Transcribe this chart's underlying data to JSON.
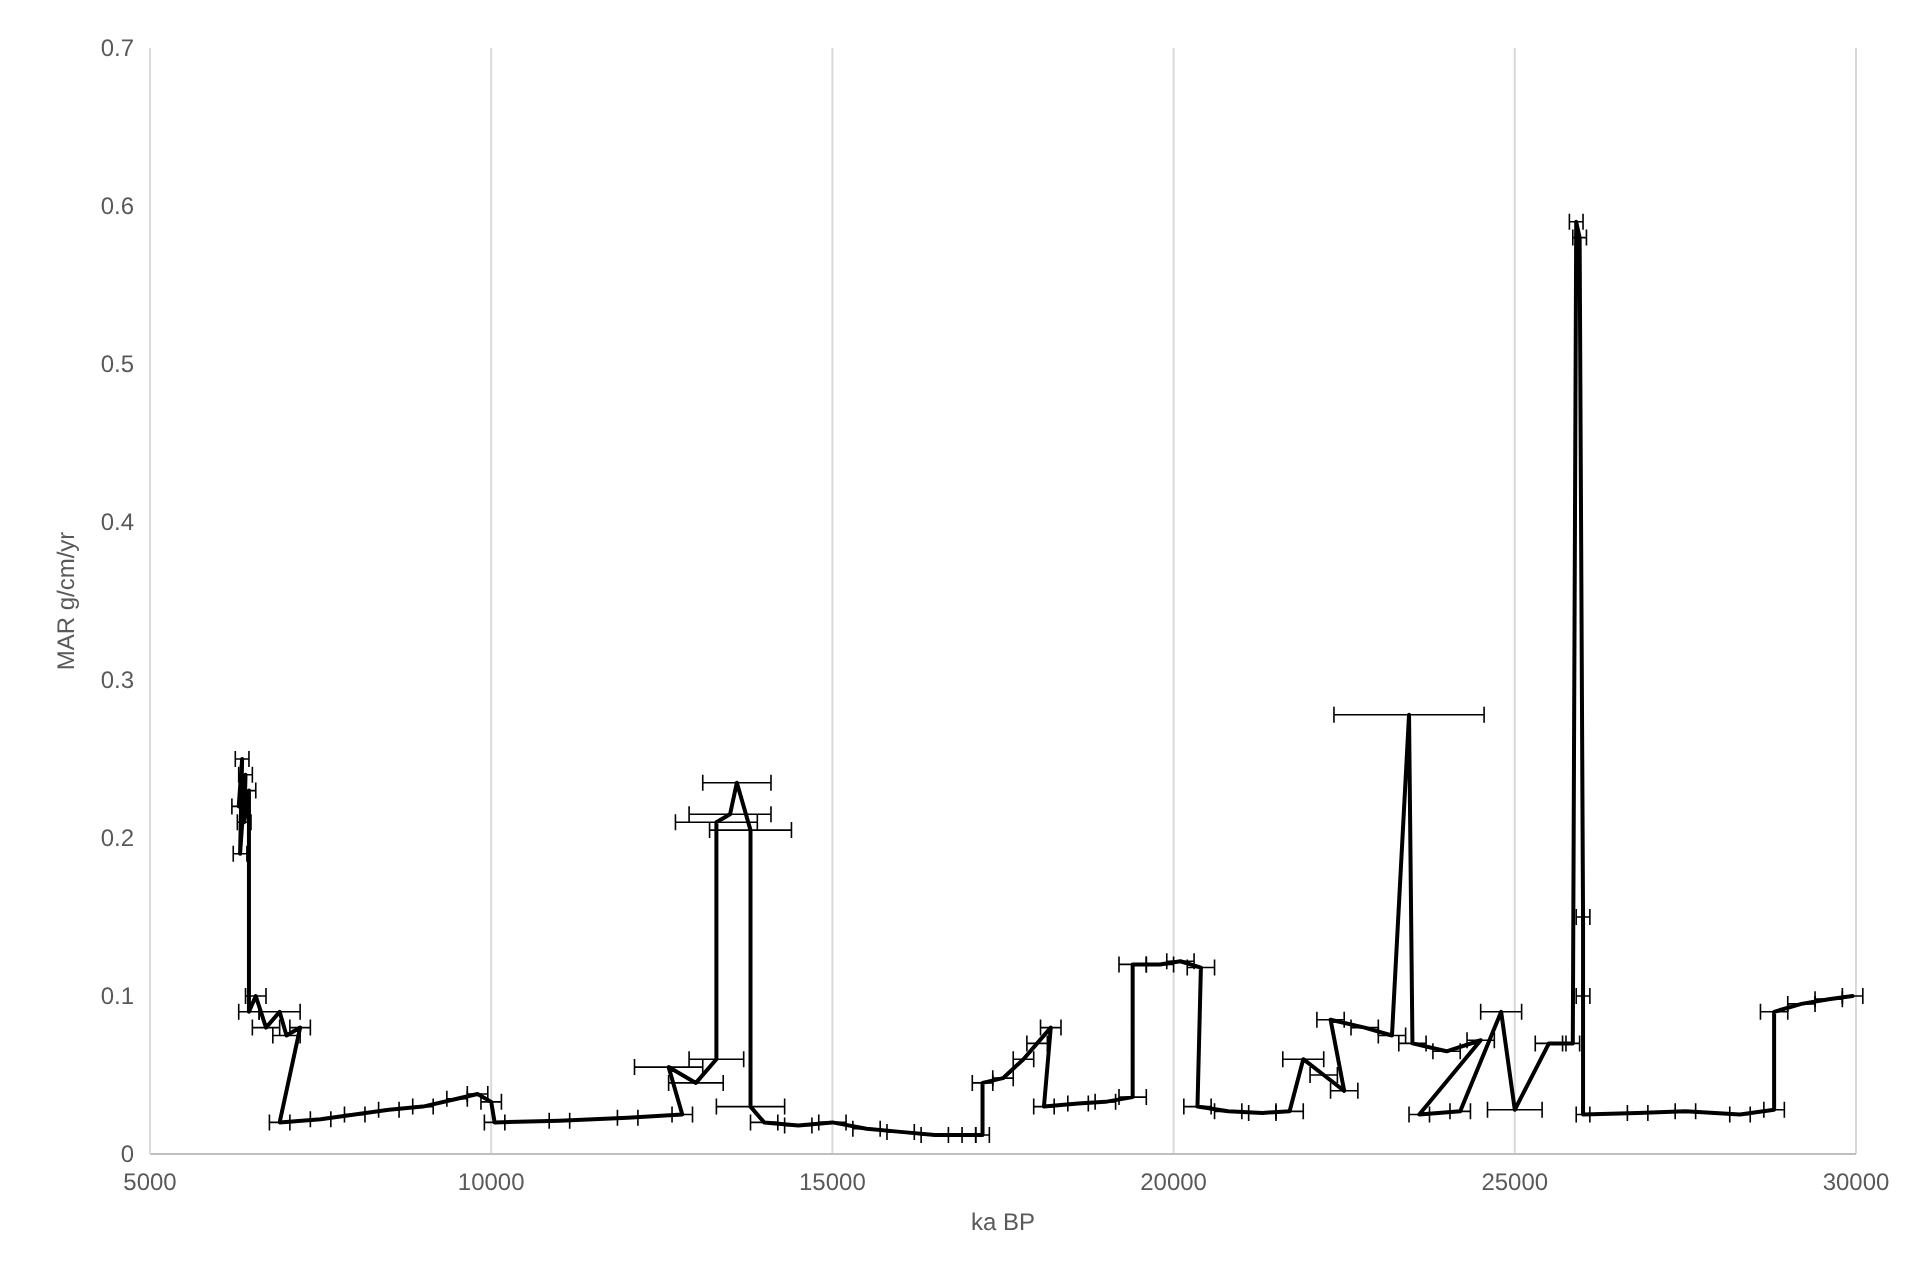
{
  "chart_data": {
    "type": "line",
    "xlabel": "ka BP",
    "ylabel": "MAR g/cm/yr",
    "xlim": [
      5000,
      30000
    ],
    "xticks": [
      5000,
      10000,
      15000,
      20000,
      25000,
      30000
    ],
    "ylim": [
      0,
      0.7
    ],
    "yticks": [
      0,
      0.1,
      0.2,
      0.3,
      0.4,
      0.5,
      0.6,
      0.7
    ],
    "grid": "x",
    "line_style": "solid",
    "series": [
      {
        "color": "#000000",
        "x": [
          6300,
          6350,
          6320,
          6400,
          6380,
          6450,
          6450,
          6550,
          6700,
          6900,
          7000,
          7200,
          6900,
          7500,
          8000,
          8500,
          9000,
          9500,
          9800,
          10000,
          10050,
          11000,
          12000,
          12800,
          12600,
          13000,
          13300,
          13300,
          13500,
          13600,
          13800,
          13800,
          14000,
          14500,
          15000,
          15500,
          16000,
          16500,
          17000,
          17200,
          17200,
          17500,
          17800,
          18000,
          18200,
          18100,
          18600,
          19000,
          19400,
          19400,
          19800,
          20100,
          20400,
          20350,
          20800,
          21300,
          21700,
          21900,
          22200,
          22500,
          22300,
          22800,
          23200,
          23450,
          23500,
          24000,
          24500,
          23600,
          24200,
          24800,
          25000,
          25500,
          25850,
          25900,
          25950,
          26000,
          26000,
          26000,
          26800,
          27500,
          28300,
          28800,
          28800,
          29200,
          29600,
          29950
        ],
        "values": [
          0.22,
          0.25,
          0.19,
          0.24,
          0.21,
          0.23,
          0.09,
          0.1,
          0.08,
          0.09,
          0.075,
          0.08,
          0.02,
          0.022,
          0.025,
          0.028,
          0.03,
          0.035,
          0.038,
          0.033,
          0.02,
          0.021,
          0.023,
          0.025,
          0.055,
          0.045,
          0.06,
          0.21,
          0.215,
          0.235,
          0.205,
          0.03,
          0.02,
          0.018,
          0.02,
          0.016,
          0.014,
          0.012,
          0.012,
          0.012,
          0.045,
          0.048,
          0.06,
          0.07,
          0.08,
          0.03,
          0.032,
          0.033,
          0.036,
          0.12,
          0.12,
          0.122,
          0.118,
          0.03,
          0.027,
          0.026,
          0.027,
          0.06,
          0.05,
          0.04,
          0.085,
          0.08,
          0.075,
          0.278,
          0.07,
          0.065,
          0.072,
          0.025,
          0.027,
          0.09,
          0.028,
          0.07,
          0.07,
          0.59,
          0.58,
          0.15,
          0.1,
          0.025,
          0.026,
          0.027,
          0.025,
          0.028,
          0.09,
          0.095,
          0.098,
          0.1
        ],
        "xerrors": [
          100,
          100,
          100,
          100,
          100,
          100,
          150,
          150,
          200,
          300,
          200,
          150,
          150,
          150,
          150,
          150,
          150,
          150,
          150,
          150,
          150,
          150,
          150,
          150,
          500,
          400,
          400,
          600,
          600,
          500,
          600,
          500,
          200,
          200,
          200,
          200,
          200,
          200,
          100,
          100,
          150,
          150,
          150,
          150,
          150,
          150,
          150,
          150,
          200,
          200,
          200,
          200,
          200,
          200,
          200,
          200,
          200,
          300,
          200,
          200,
          200,
          200,
          200,
          1100,
          200,
          200,
          200,
          150,
          150,
          300,
          400,
          200,
          100,
          100,
          100,
          100,
          100,
          100,
          150,
          150,
          150,
          150,
          200,
          200,
          200,
          150
        ]
      }
    ]
  }
}
